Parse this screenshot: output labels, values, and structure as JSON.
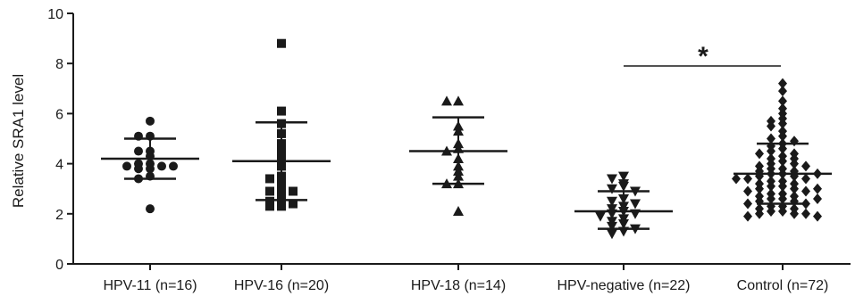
{
  "chart_data": {
    "type": "scatter",
    "ylabel": "Relative SRA1 level",
    "xlabel": "",
    "ylim": [
      0,
      10
    ],
    "y_ticks": [
      0,
      2,
      4,
      6,
      8,
      10
    ],
    "y_tick_labels": [
      "0",
      "2",
      "4",
      "6",
      "8",
      "10"
    ],
    "categories": [
      "HPV-11 (n=16)",
      "HPV-16 (n=20)",
      "HPV-18 (n=14)",
      "HPV-negative (n=22)",
      "Control (n=72)"
    ],
    "grid": false,
    "legend": "none",
    "groups": [
      {
        "category": "HPV-11 (n=16)",
        "marker": "circle",
        "mean": 4.2,
        "sd_upper": 5.0,
        "sd_lower": 3.4,
        "values": [
          5.7,
          5.1,
          5.1,
          4.5,
          4.5,
          4.0,
          4.0,
          3.9,
          3.9,
          3.8,
          3.8,
          3.5,
          3.4,
          3.9,
          4.3,
          2.2
        ]
      },
      {
        "category": "HPV-16 (n=20)",
        "marker": "square",
        "mean": 4.1,
        "sd_upper": 5.65,
        "sd_lower": 2.55,
        "values": [
          8.8,
          6.1,
          5.6,
          5.2,
          4.8,
          4.5,
          4.2,
          3.9,
          3.5,
          3.4,
          3.3,
          3.1,
          2.9,
          2.9,
          2.8,
          2.6,
          2.5,
          2.4,
          2.3,
          2.3
        ]
      },
      {
        "category": "HPV-18 (n=14)",
        "marker": "triangle-up",
        "mean": 4.5,
        "sd_upper": 5.85,
        "sd_lower": 3.2,
        "values": [
          6.5,
          6.5,
          5.5,
          5.3,
          4.8,
          4.6,
          4.5,
          4.2,
          3.9,
          3.7,
          3.5,
          3.2,
          3.2,
          2.1
        ]
      },
      {
        "category": "HPV-negative (n=22)",
        "marker": "triangle-down",
        "mean": 2.1,
        "sd_upper": 2.9,
        "sd_lower": 1.4,
        "values": [
          3.5,
          3.4,
          3.2,
          3.1,
          3.0,
          2.9,
          2.6,
          2.5,
          2.4,
          2.3,
          2.2,
          2.1,
          2.0,
          2.0,
          1.9,
          1.8,
          1.7,
          1.6,
          1.5,
          1.4,
          1.3,
          1.2
        ]
      },
      {
        "category": "Control (n=72)",
        "marker": "diamond",
        "mean": 3.6,
        "sd_upper": 4.8,
        "sd_lower": 2.4,
        "values": [
          7.2,
          6.9,
          6.5,
          6.2,
          6.0,
          5.8,
          5.7,
          5.6,
          5.5,
          5.3,
          5.1,
          5.0,
          4.9,
          4.8,
          4.7,
          4.6,
          4.5,
          4.4,
          4.3,
          4.2,
          4.1,
          4.0,
          4.0,
          3.9,
          3.9,
          3.8,
          3.8,
          3.7,
          3.7,
          3.6,
          3.6,
          3.5,
          3.5,
          3.4,
          3.4,
          3.3,
          3.3,
          3.2,
          3.2,
          3.1,
          3.1,
          3.0,
          3.0,
          2.9,
          2.9,
          2.8,
          2.8,
          2.7,
          2.7,
          2.6,
          2.6,
          2.5,
          2.5,
          2.4,
          2.4,
          2.3,
          2.3,
          2.2,
          2.2,
          2.1,
          2.1,
          2.0,
          2.0,
          2.0,
          1.9,
          1.9,
          3.6,
          3.4,
          3.0,
          2.6,
          4.2,
          4.4
        ]
      }
    ],
    "annotations": [
      {
        "text": "*",
        "from_category": "HPV-negative (n=22)",
        "to_category": "Control (n=72)",
        "bar_y": 7.9
      }
    ],
    "colors": {
      "marker": "#1a1a1a",
      "axis": "#1a1a1a"
    }
  }
}
